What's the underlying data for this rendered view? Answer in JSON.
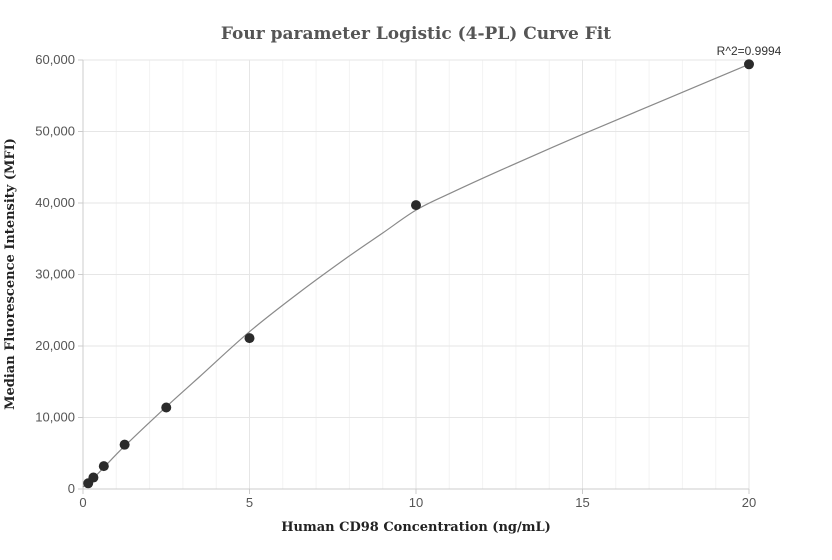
{
  "chart_data": {
    "type": "scatter",
    "title": "Four parameter Logistic (4-PL) Curve Fit",
    "xlabel": "Human CD98 Concentration (ng/mL)",
    "ylabel": "Median Fluorescence Intensity (MFI)",
    "xlim": [
      0,
      20
    ],
    "ylim": [
      0,
      60000
    ],
    "x_ticks": [
      0,
      5,
      10,
      15,
      20
    ],
    "x_tick_labels": [
      "0",
      "5",
      "10",
      "15",
      "20"
    ],
    "y_ticks": [
      0,
      10000,
      20000,
      30000,
      40000,
      50000,
      60000
    ],
    "y_tick_labels": [
      "0",
      "10,000",
      "20,000",
      "30,000",
      "40,000",
      "50,000",
      "60,000"
    ],
    "grid": true,
    "annotation": "R^2=0.9994",
    "points": [
      {
        "x": 0.156,
        "y": 800
      },
      {
        "x": 0.3125,
        "y": 1600
      },
      {
        "x": 0.625,
        "y": 3200
      },
      {
        "x": 1.25,
        "y": 6200
      },
      {
        "x": 2.5,
        "y": 11400
      },
      {
        "x": 5,
        "y": 21100
      },
      {
        "x": 10,
        "y": 39700
      },
      {
        "x": 20,
        "y": 59400
      }
    ],
    "fit_curve": [
      {
        "x": 0,
        "y": 300
      },
      {
        "x": 0.156,
        "y": 900
      },
      {
        "x": 0.3125,
        "y": 1500
      },
      {
        "x": 0.625,
        "y": 3000
      },
      {
        "x": 1.25,
        "y": 6000
      },
      {
        "x": 2.5,
        "y": 11500
      },
      {
        "x": 3.5,
        "y": 15700
      },
      {
        "x": 5,
        "y": 22000
      },
      {
        "x": 6.5,
        "y": 27500
      },
      {
        "x": 8,
        "y": 32600
      },
      {
        "x": 9,
        "y": 35800
      },
      {
        "x": 10,
        "y": 39000
      },
      {
        "x": 11,
        "y": 41300
      },
      {
        "x": 12.5,
        "y": 44500
      },
      {
        "x": 15,
        "y": 49600
      },
      {
        "x": 17.5,
        "y": 54500
      },
      {
        "x": 20,
        "y": 59400
      }
    ],
    "colors": {
      "point": "#2b2b2b",
      "curve": "#8a8a8a",
      "grid": "#e6e6e6",
      "axis": "#cccccc"
    }
  }
}
